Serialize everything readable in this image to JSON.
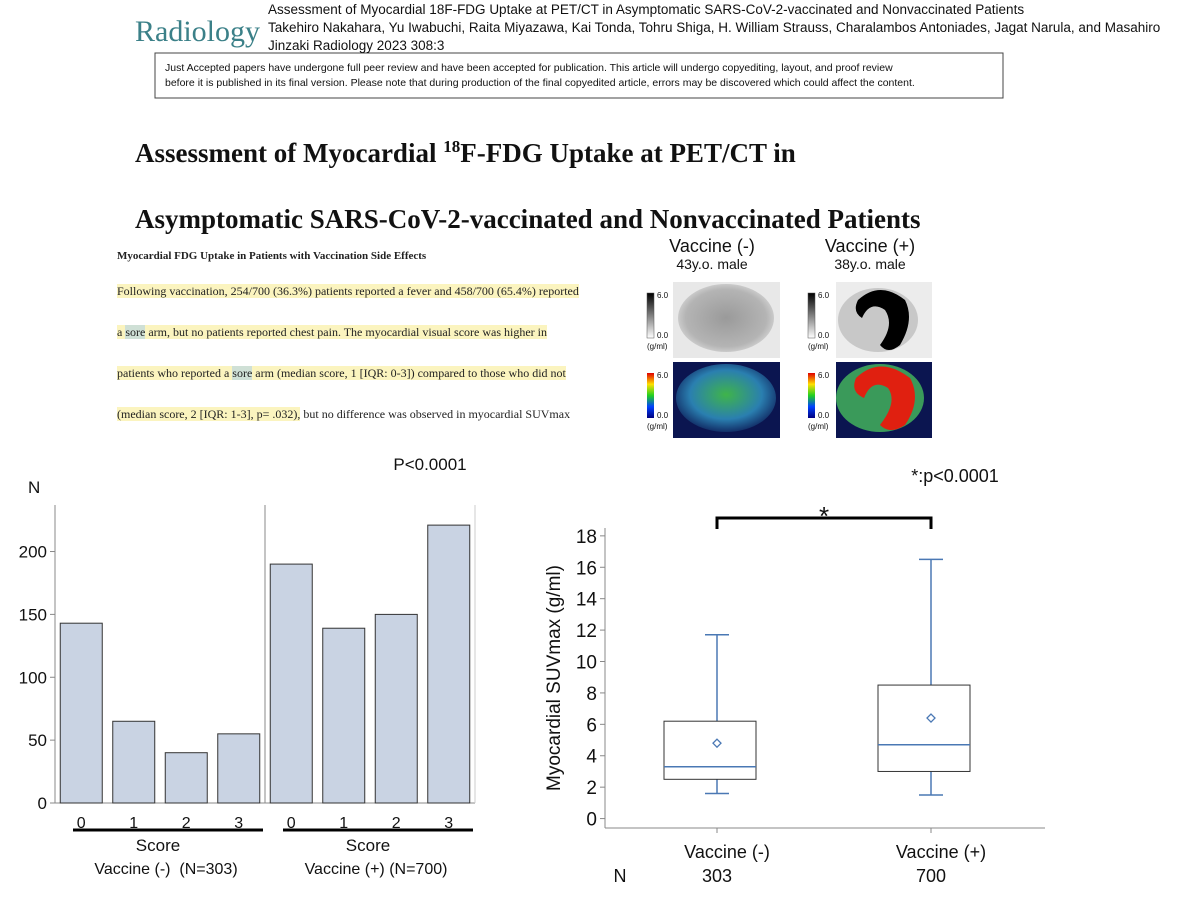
{
  "header": {
    "logo": "Radiology",
    "lines": [
      "Assessment of Myocardial 18F-FDG Uptake at PET/CT in Asymptomatic SARS-CoV-2-vaccinated and Nonvaccinated Patients",
      "Takehiro Nakahara, Yu Iwabuchi, Raita Miyazawa, Kai Tonda, Tohru Shiga, H. William Strauss, Charalambos Antoniades, Jagat Narula, and Masahiro",
      "Jinzaki  Radiology 2023 308:3"
    ]
  },
  "notice": [
    "Just Accepted papers have undergone full peer review and have been accepted for publication. This article will undergo copyediting, layout, and proof review",
    "before it is published in its final version. Please note that during production of the final copyedited article, errors may be discovered which could affect the content."
  ],
  "title": {
    "part1": "Assessment of Myocardial ",
    "superscript": "18",
    "part2": "F-FDG Uptake at PET/CT in",
    "line2": "Asymptomatic SARS-CoV-2-vaccinated and Nonvaccinated Patients"
  },
  "excerpt": {
    "heading": "Myocardial FDG Uptake in Patients with Vaccination Side Effects",
    "lines": [
      [
        {
          "text": "Following vaccination, 254/700 (36.3%) patients reported a fever and 458/700 (65.4%) reported",
          "highlight": "#fbf4bf"
        }
      ],
      [
        {
          "text": "a ",
          "highlight": "#fbf4bf"
        },
        {
          "text": "sore",
          "highlight": "#cfe0d6"
        },
        {
          "text": " arm, but no patients reported chest pain. The myocardial visual score was higher in",
          "highlight": "#fbf4bf"
        }
      ],
      [
        {
          "text": "patients who reported a ",
          "highlight": "#fbf4bf"
        },
        {
          "text": "sore",
          "highlight": "#cfe0d6"
        },
        {
          "text": " arm (median score, 1 [IQR: 0-3]) compared to those who did not",
          "highlight": "#fbf4bf"
        }
      ],
      [
        {
          "text": "(median score, 2 [IQR: 1-3], p= .032),",
          "highlight": "#fbf4bf"
        },
        {
          "text": " but no difference was observed in myocardial SUVmax"
        }
      ]
    ]
  },
  "images": [
    {
      "title": "Vaccine (-)",
      "subtitle": "43y.o. male",
      "scales": [
        {
          "max": "6.0",
          "min": "0.0",
          "unit": "(g/ml)"
        },
        {
          "max": "6.0",
          "min": "0.0",
          "unit": "(g/ml)"
        }
      ]
    },
    {
      "title": "Vaccine (+)",
      "subtitle": "38y.o. male",
      "scales": [
        {
          "max": "6.0",
          "min": "0.0",
          "unit": "(g/ml)"
        },
        {
          "max": "6.0",
          "min": "0.0",
          "unit": "(g/ml)"
        }
      ]
    }
  ],
  "chart_data": [
    {
      "type": "bar",
      "annotation": "P<0.0001",
      "ylabel": "N",
      "xlabel": "Score",
      "categories": [
        "0",
        "1",
        "2",
        "3"
      ],
      "series": [
        {
          "name": "Vaccine (-)  (N=303)",
          "color": "#c9d3e3",
          "values": [
            143,
            65,
            40,
            55
          ]
        },
        {
          "name": "Vaccine (+) (N=700)",
          "color": "#c9d3e3",
          "values": [
            190,
            139,
            150,
            221
          ]
        }
      ],
      "ylim": [
        0,
        237
      ],
      "yticks": [
        0,
        50,
        100,
        150,
        200
      ]
    },
    {
      "type": "box",
      "annotation": "*:p<0.0001",
      "significance": "*",
      "ylabel": "Myocardial SUVmax (g/ml)",
      "categories": [
        "Vaccine (-)",
        "Vaccine (+)"
      ],
      "n_label": "N",
      "n": [
        303,
        700
      ],
      "color": "#4a78b4",
      "boxes": [
        {
          "min": 1.6,
          "q1": 2.5,
          "median": 3.3,
          "q3": 6.2,
          "max": 11.7,
          "mean": 4.8
        },
        {
          "min": 1.5,
          "q1": 3.0,
          "median": 4.7,
          "q3": 8.5,
          "max": 16.5,
          "mean": 6.4
        }
      ],
      "ylim": [
        -0.6,
        18.5
      ],
      "yticks": [
        0,
        2,
        4,
        6,
        8,
        10,
        12,
        14,
        16,
        18
      ]
    }
  ]
}
